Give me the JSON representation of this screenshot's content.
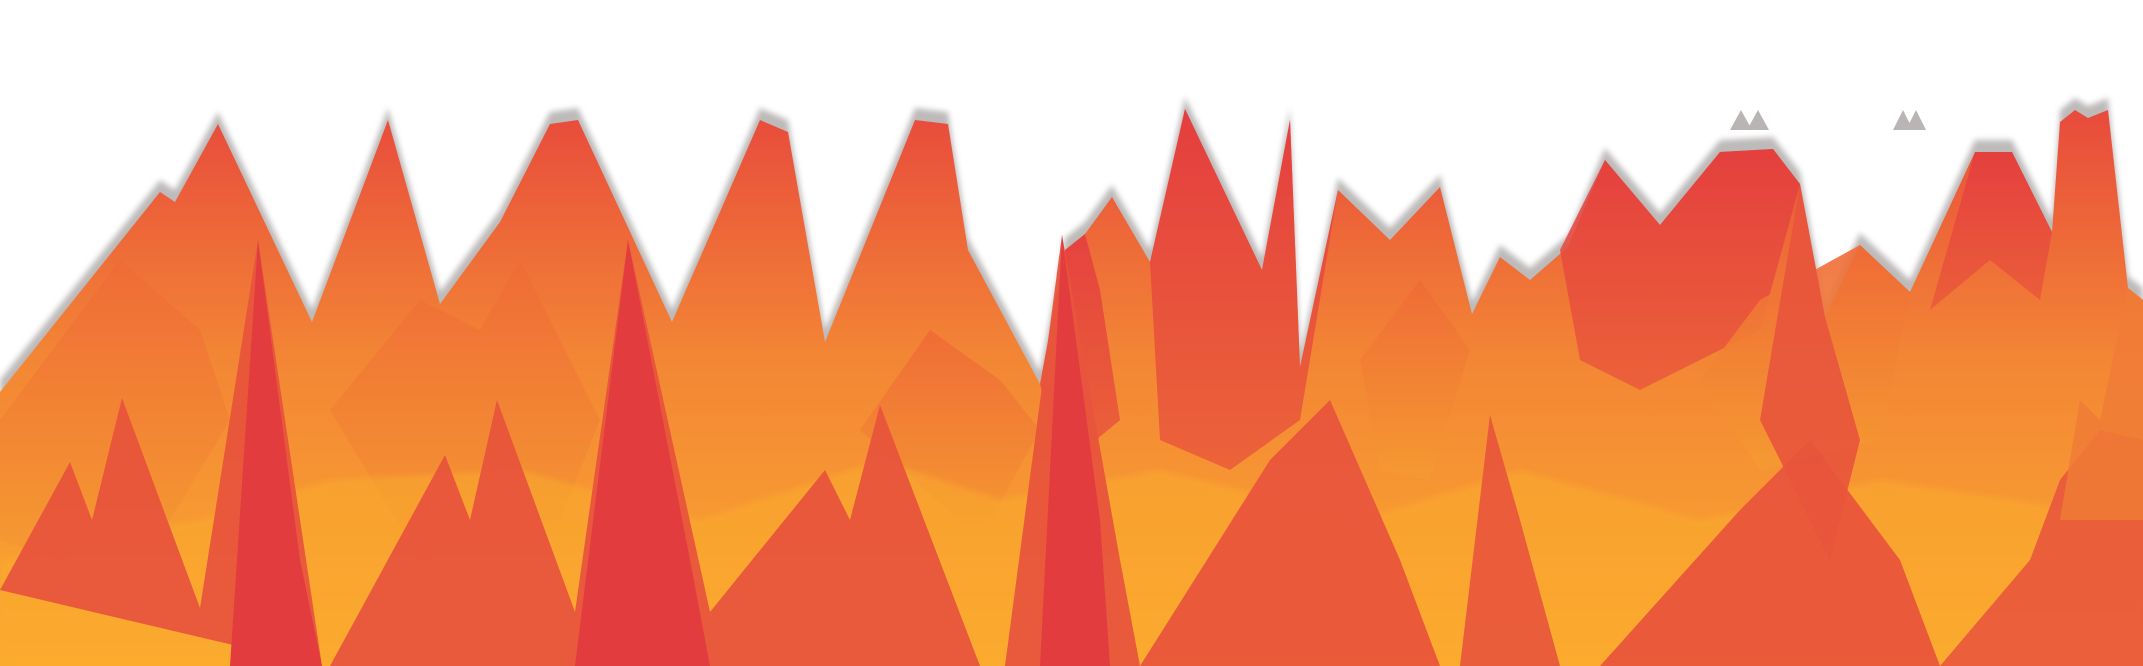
{
  "scene": {
    "subject": "flame-spikes",
    "palette": {
      "background": "#ffffff",
      "outline": "#a8a3a3",
      "deep_red": "#e33c3f",
      "red_orange": "#e8543c",
      "orange": "#f07b36",
      "amber": "#fbab2f"
    }
  }
}
